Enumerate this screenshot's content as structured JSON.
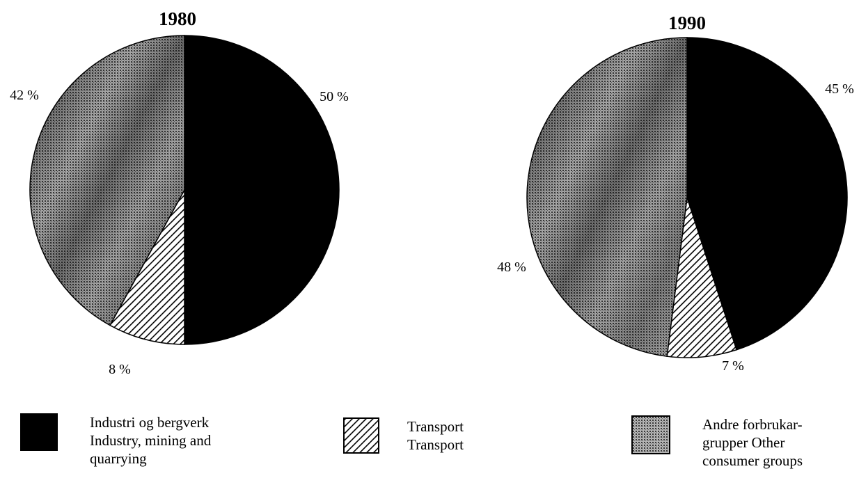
{
  "chart_data": [
    {
      "type": "pie",
      "title": "1980",
      "slices": [
        {
          "label": "Industri og bergverk Industry, mining and quarrying",
          "value": 50,
          "display": "50 %",
          "pattern": "solid-black"
        },
        {
          "label": "Transport Transport",
          "value": 8,
          "display": "8 %",
          "pattern": "hatch"
        },
        {
          "label": "Andre forbrukar-grupper Other consumer groups",
          "value": 42,
          "display": "42 %",
          "pattern": "stipple"
        }
      ]
    },
    {
      "type": "pie",
      "title": "1990",
      "slices": [
        {
          "label": "Industri og bergverk Industry, mining and quarrying",
          "value": 45,
          "display": "45 %",
          "pattern": "solid-black"
        },
        {
          "label": "Transport Transport",
          "value": 7,
          "display": "7 %",
          "pattern": "hatch"
        },
        {
          "label": "Andre forbrukar-grupper Other consumer groups",
          "value": 48,
          "display": "48 %",
          "pattern": "stipple"
        }
      ]
    }
  ],
  "legend": [
    {
      "lines": [
        "Industri og bergverk",
        "Industry, mining and",
        "quarrying"
      ],
      "pattern": "solid-black"
    },
    {
      "lines": [
        "Transport",
        "Transport"
      ],
      "pattern": "hatch"
    },
    {
      "lines": [
        "Andre forbrukar-",
        "grupper  Other",
        "consumer groups"
      ],
      "pattern": "stipple"
    }
  ],
  "colors": {
    "ink": "#000000",
    "paper": "#ffffff",
    "stipple_base": "#9a9a9a"
  }
}
